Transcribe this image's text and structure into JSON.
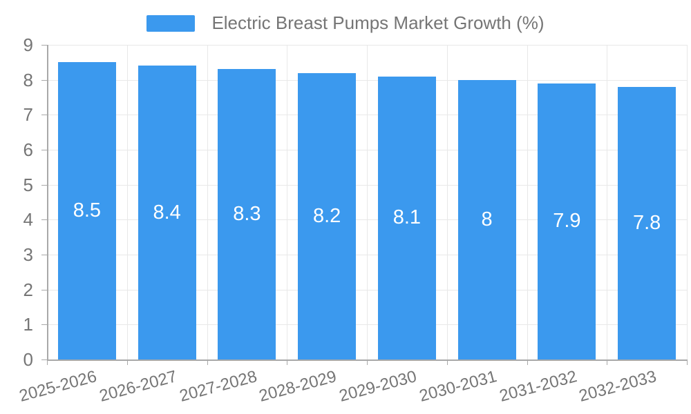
{
  "chart_data": {
    "type": "bar",
    "title": "Electric Breast Pumps Market Growth (%)",
    "categories": [
      "2025-2026",
      "2026-2027",
      "2027-2028",
      "2028-2029",
      "2029-2030",
      "2030-2031",
      "2031-2032",
      "2032-2033"
    ],
    "values": [
      8.5,
      8.4,
      8.3,
      8.2,
      8.1,
      8,
      7.9,
      7.8
    ],
    "bar_labels": [
      "8.5",
      "8.4",
      "8.3",
      "8.2",
      "8.1",
      "8",
      "7.9",
      "7.8"
    ],
    "xlabel": "",
    "ylabel": "",
    "ylim": [
      0,
      9
    ],
    "y_ticks": [
      0,
      1,
      2,
      3,
      4,
      5,
      6,
      7,
      8,
      9
    ],
    "grid": true,
    "legend_position": "top-center",
    "legend_entries": [
      "Electric Breast Pumps Market Growth (%)"
    ],
    "colors": {
      "bar": "#3B99EE",
      "grid": "#e8e8e8",
      "axis": "#a8a8a8",
      "text": "#757575",
      "bar_label": "#ffffff",
      "background": "#ffffff"
    }
  }
}
